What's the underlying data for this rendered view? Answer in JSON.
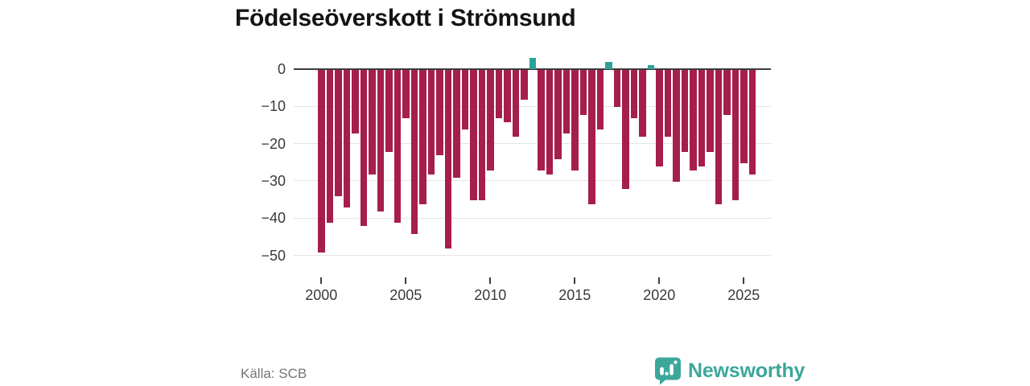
{
  "page": {
    "title": "Födelseöverskott i Strömsund",
    "source": "Källa: SCB"
  },
  "brand": {
    "name": "Newsworthy",
    "color": "#3ba79a"
  },
  "colors": {
    "negative_bar": "#a61e4d",
    "positive_bar": "#2aa396",
    "axis_text": "#3a3a3a",
    "zero_line": "#3c3c3c",
    "gridline": "#e4e4e4",
    "source_text": "#757575"
  },
  "chart_data": {
    "type": "bar",
    "title": "Födelseöverskott i Strömsund",
    "periods": [
      "2000 H1",
      "2000 H2",
      "2001 H1",
      "2001 H2",
      "2002 H1",
      "2002 H2",
      "2003 H1",
      "2003 H2",
      "2004 H1",
      "2004 H2",
      "2005 H1",
      "2005 H2",
      "2006 H1",
      "2006 H2",
      "2007 H1",
      "2007 H2",
      "2008 H1",
      "2008 H2",
      "2009 H1",
      "2009 H2",
      "2010 H1",
      "2010 H2",
      "2011 H1",
      "2011 H2",
      "2012 H1",
      "2012 H2",
      "2013 H1",
      "2013 H2",
      "2014 H1",
      "2014 H2",
      "2015 H1",
      "2015 H2",
      "2016 H1",
      "2016 H2",
      "2017 H1",
      "2017 H2",
      "2018 H1",
      "2018 H2",
      "2019 H1",
      "2019 H2",
      "2020 H1",
      "2020 H2",
      "2021 H1",
      "2021 H2",
      "2022 H1",
      "2022 H2",
      "2023 H1",
      "2023 H2",
      "2024 H1",
      "2024 H2",
      "2025 H1",
      "2025 H2"
    ],
    "values": [
      -49,
      -41,
      -34,
      -37,
      -17,
      -42,
      -28,
      -38,
      -22,
      -41,
      -13,
      -44,
      -36,
      -28,
      -23,
      -48,
      -29,
      -16,
      -35,
      -35,
      -27,
      -13,
      -14,
      -18,
      -8,
      3,
      -27,
      -28,
      -24,
      -17,
      -27,
      -12,
      -36,
      -16,
      2,
      -10,
      -32,
      -13,
      -18,
      1,
      -26,
      -18,
      -30,
      -22,
      -27,
      -26,
      -22,
      -36,
      -12,
      -35,
      -25,
      -28
    ],
    "y_ticks": {
      "values": [
        0,
        -10,
        -20,
        -30,
        -40,
        -50
      ],
      "labels": [
        "0",
        "−10",
        "−20",
        "−30",
        "−40",
        "−50"
      ]
    },
    "x_ticks": {
      "bar_indices": [
        0,
        10,
        20,
        30,
        40,
        50
      ],
      "labels": [
        "2000",
        "2005",
        "2010",
        "2015",
        "2020",
        "2025"
      ]
    },
    "ylim": [
      -50,
      5
    ],
    "grid": true,
    "legend": false
  }
}
